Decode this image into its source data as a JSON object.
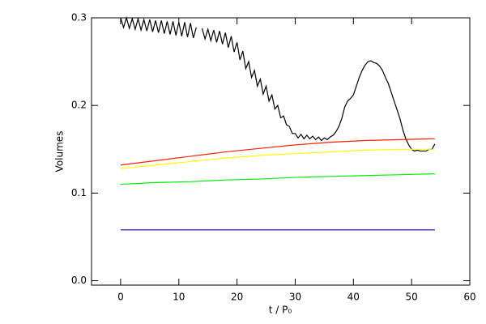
{
  "chart_data": {
    "type": "line",
    "xlabel": "t / P₀",
    "ylabel": "Volumes",
    "xlim": [
      -5,
      60
    ],
    "xticks": [
      0,
      10,
      20,
      30,
      40,
      50,
      60
    ],
    "ylim": [
      -0.005,
      0.3
    ],
    "yticks": [
      {
        "value": 0,
        "label": "0.0"
      },
      0.1,
      0.2,
      0.3
    ],
    "series": [
      {
        "color": "#000000",
        "x": [
          0,
          0.5,
          1,
          1.5,
          2,
          2.5,
          3,
          3.5,
          4,
          4.5,
          5,
          5.5,
          6,
          6.5,
          7,
          7.5,
          8,
          8.5,
          9,
          9.5,
          10,
          10.5,
          11,
          11.5,
          12,
          12.5,
          13,
          13.5,
          14,
          14.5,
          15,
          15.5,
          16,
          16.5,
          17,
          17.5,
          18,
          18.5,
          19,
          19.5,
          20,
          20.5,
          21,
          21.5,
          22,
          22.5,
          23,
          23.5,
          24,
          24.5,
          25,
          25.5,
          26,
          26.5,
          27,
          27.5,
          28,
          28.5,
          29,
          29.5,
          30,
          30.5,
          31,
          31.5,
          32,
          32.5,
          33,
          33.5,
          34,
          34.5,
          35,
          35.5,
          36,
          36.5,
          37,
          37.5,
          38,
          38.5,
          39,
          39.5,
          40,
          40.5,
          41,
          41.5,
          42,
          42.5,
          43,
          43.5,
          44,
          44.5,
          45,
          45.5,
          46,
          46.5,
          47,
          47.5,
          48,
          48.5,
          49,
          49.5,
          50,
          50.5,
          51,
          51.5,
          52,
          52.5,
          53,
          53.5,
          54
        ],
        "values": [
          0.3,
          0.289,
          0.3,
          0.288,
          0.299,
          0.287,
          0.299,
          0.286,
          0.298,
          0.285,
          0.298,
          0.284,
          0.297,
          0.283,
          0.297,
          0.282,
          0.296,
          0.281,
          0.296,
          0.28,
          0.295,
          0.279,
          0.295,
          0.278,
          0.294,
          0.277,
          0.289,
          null,
          0.288,
          0.276,
          0.287,
          0.274,
          0.286,
          0.272,
          0.285,
          0.27,
          0.283,
          0.266,
          0.279,
          0.261,
          0.272,
          0.252,
          0.262,
          0.242,
          0.25,
          0.232,
          0.24,
          0.222,
          0.23,
          0.213,
          0.222,
          0.205,
          0.212,
          0.196,
          0.2,
          0.186,
          0.188,
          0.178,
          0.176,
          0.168,
          0.168,
          0.163,
          0.167,
          0.162,
          0.166,
          0.162,
          0.165,
          0.161,
          0.164,
          0.16,
          0.163,
          0.161,
          0.164,
          0.166,
          0.17,
          0.176,
          0.185,
          0.198,
          0.205,
          0.208,
          0.212,
          0.222,
          0.232,
          0.24,
          0.246,
          0.25,
          0.251,
          0.249,
          0.248,
          0.245,
          0.24,
          0.232,
          0.225,
          0.215,
          0.205,
          0.195,
          0.185,
          0.172,
          0.162,
          0.155,
          0.15,
          0.148,
          0.149,
          0.148,
          0.148,
          0.148,
          0.15,
          0.15,
          0.156
        ]
      },
      {
        "color": "#ff2000",
        "x": [
          0,
          6,
          12,
          18,
          24,
          30,
          36,
          42,
          48,
          54
        ],
        "values": [
          0.132,
          0.137,
          0.142,
          0.147,
          0.151,
          0.155,
          0.158,
          0.16,
          0.161,
          0.162
        ]
      },
      {
        "color": "#ffff00",
        "x": [
          0,
          6,
          12,
          18,
          24,
          30,
          36,
          42,
          48,
          54
        ],
        "values": [
          0.128,
          0.132,
          0.136,
          0.14,
          0.143,
          0.145,
          0.147,
          0.149,
          0.15,
          0.15
        ]
      },
      {
        "color": "#00ee00",
        "x": [
          0,
          6,
          12,
          18,
          24,
          30,
          36,
          42,
          48,
          54
        ],
        "values": [
          0.11,
          0.112,
          0.113,
          0.115,
          0.116,
          0.118,
          0.119,
          0.12,
          0.121,
          0.122
        ]
      },
      {
        "color": "#0000cc",
        "x": [
          0,
          6,
          12,
          18,
          24,
          30,
          36,
          42,
          48,
          54
        ],
        "values": [
          0.058,
          0.058,
          0.058,
          0.058,
          0.058,
          0.058,
          0.058,
          0.058,
          0.058,
          0.058
        ]
      }
    ]
  }
}
